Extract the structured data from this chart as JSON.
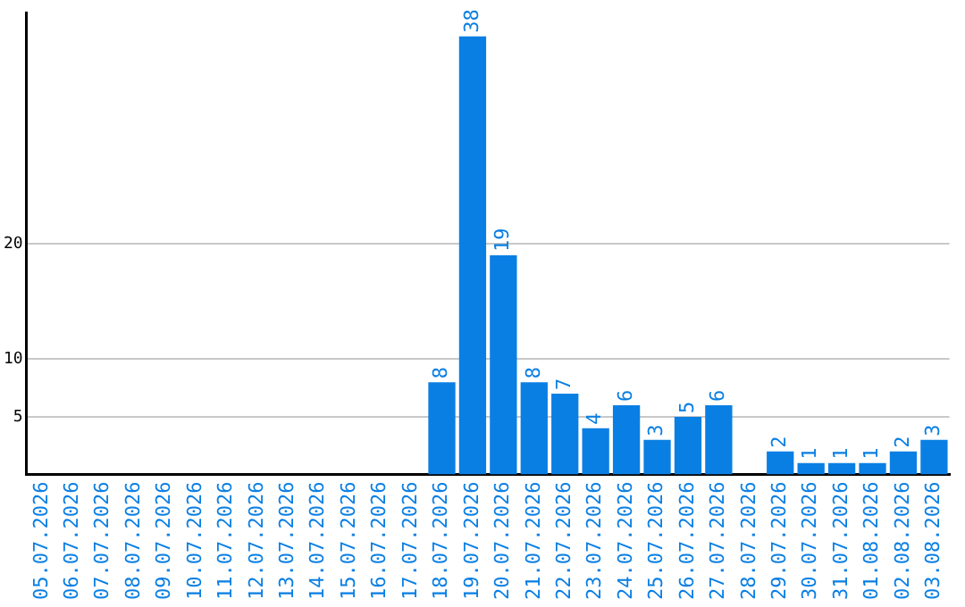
{
  "chart_data": {
    "type": "bar",
    "categories": [
      "05.07.2026",
      "06.07.2026",
      "07.07.2026",
      "08.07.2026",
      "09.07.2026",
      "10.07.2026",
      "11.07.2026",
      "12.07.2026",
      "13.07.2026",
      "14.07.2026",
      "15.07.2026",
      "16.07.2026",
      "17.07.2026",
      "18.07.2026",
      "19.07.2026",
      "20.07.2026",
      "21.07.2026",
      "22.07.2026",
      "23.07.2026",
      "24.07.2026",
      "25.07.2026",
      "26.07.2026",
      "27.07.2026",
      "28.07.2026",
      "29.07.2026",
      "30.07.2026",
      "31.07.2026",
      "01.08.2026",
      "02.08.2026",
      "03.08.2026"
    ],
    "values": [
      0,
      0,
      0,
      0,
      0,
      0,
      0,
      0,
      0,
      0,
      0,
      0,
      0,
      8,
      38,
      19,
      8,
      7,
      4,
      6,
      3,
      5,
      6,
      0,
      2,
      1,
      1,
      1,
      2,
      3
    ],
    "value_labels": [
      null,
      null,
      null,
      null,
      null,
      null,
      null,
      null,
      null,
      null,
      null,
      null,
      null,
      "8",
      "38",
      "19",
      "8",
      "7",
      "4",
      "6",
      "3",
      "5",
      "6",
      null,
      "2",
      "1",
      "1",
      "1",
      "2",
      "3"
    ],
    "color": "#0a7fe3",
    "ylim": [
      0,
      40
    ],
    "yticks": [
      5,
      10,
      20
    ],
    "grid": "y",
    "legend": false
  }
}
